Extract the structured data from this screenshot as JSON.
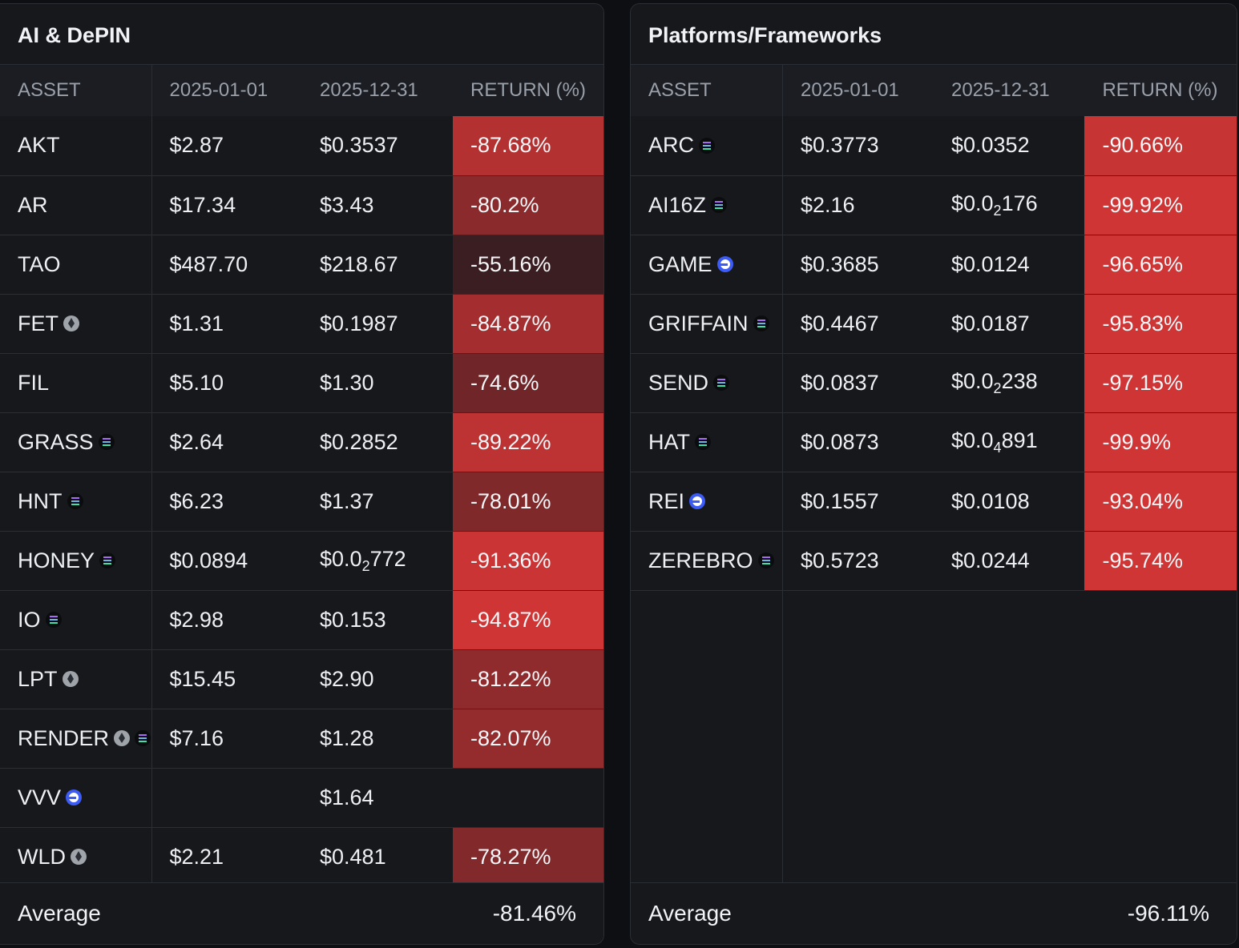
{
  "panels": [
    {
      "title": "AI & DePIN",
      "columns": [
        "ASSET",
        "2025-01-01",
        "2025-12-31",
        "RETURN (%)"
      ],
      "rows": [
        {
          "asset": "AKT",
          "chains": [],
          "start": "$2.87",
          "end": "$0.3537",
          "ret": "-87.68%",
          "ret_value": -87.68
        },
        {
          "asset": "AR",
          "chains": [],
          "start": "$17.34",
          "end": "$3.43",
          "ret": "-80.2%",
          "ret_value": -80.2
        },
        {
          "asset": "TAO",
          "chains": [],
          "start": "$487.70",
          "end": "$218.67",
          "ret": "-55.16%",
          "ret_value": -55.16
        },
        {
          "asset": "FET",
          "chains": [
            "ethereum-icon"
          ],
          "start": "$1.31",
          "end": "$0.1987",
          "ret": "-84.87%",
          "ret_value": -84.87
        },
        {
          "asset": "FIL",
          "chains": [],
          "start": "$5.10",
          "end": "$1.30",
          "ret": "-74.6%",
          "ret_value": -74.6
        },
        {
          "asset": "GRASS",
          "chains": [
            "solana-icon"
          ],
          "start": "$2.64",
          "end": "$0.2852",
          "ret": "-89.22%",
          "ret_value": -89.22
        },
        {
          "asset": "HNT",
          "chains": [
            "solana-icon"
          ],
          "start": "$6.23",
          "end": "$1.37",
          "ret": "-78.01%",
          "ret_value": -78.01
        },
        {
          "asset": "HONEY",
          "chains": [
            "solana-icon"
          ],
          "start": "$0.0894",
          "end": {
            "pre": "$0.0",
            "sub": "2",
            "post": "772"
          },
          "ret": "-91.36%",
          "ret_value": -91.36
        },
        {
          "asset": "IO",
          "chains": [
            "solana-icon"
          ],
          "start": "$2.98",
          "end": "$0.153",
          "ret": "-94.87%",
          "ret_value": -94.87
        },
        {
          "asset": "LPT",
          "chains": [
            "ethereum-icon"
          ],
          "start": "$15.45",
          "end": "$2.90",
          "ret": "-81.22%",
          "ret_value": -81.22
        },
        {
          "asset": "RENDER",
          "chains": [
            "ethereum-icon",
            "solana-icon"
          ],
          "start": "$7.16",
          "end": "$1.28",
          "ret": "-82.07%",
          "ret_value": -82.07
        },
        {
          "asset": "VVV",
          "chains": [
            "base-icon"
          ],
          "start": "",
          "end": "$1.64",
          "ret": "",
          "ret_value": null
        },
        {
          "asset": "WLD",
          "chains": [
            "ethereum-icon"
          ],
          "start": "$2.21",
          "end": "$0.481",
          "ret": "-78.27%",
          "ret_value": -78.27
        }
      ],
      "average_label": "Average",
      "average_value": "-81.46%"
    },
    {
      "title": "Platforms/Frameworks",
      "columns": [
        "ASSET",
        "2025-01-01",
        "2025-12-31",
        "RETURN (%)"
      ],
      "rows": [
        {
          "asset": "ARC",
          "chains": [
            "solana-icon"
          ],
          "start": "$0.3773",
          "end": "$0.0352",
          "ret": "-90.66%",
          "ret_value": -90.66
        },
        {
          "asset": "AI16Z",
          "chains": [
            "solana-icon"
          ],
          "start": "$2.16",
          "end": {
            "pre": "$0.0",
            "sub": "2",
            "post": "176"
          },
          "ret": "-99.92%",
          "ret_value": -99.92
        },
        {
          "asset": "GAME",
          "chains": [
            "base-icon"
          ],
          "start": "$0.3685",
          "end": "$0.0124",
          "ret": "-96.65%",
          "ret_value": -96.65
        },
        {
          "asset": "GRIFFAIN",
          "chains": [
            "solana-icon"
          ],
          "start": "$0.4467",
          "end": "$0.0187",
          "ret": "-95.83%",
          "ret_value": -95.83
        },
        {
          "asset": "SEND",
          "chains": [
            "solana-icon"
          ],
          "start": "$0.0837",
          "end": {
            "pre": "$0.0",
            "sub": "2",
            "post": "238"
          },
          "ret": "-97.15%",
          "ret_value": -97.15
        },
        {
          "asset": "HAT",
          "chains": [
            "solana-icon"
          ],
          "start": "$0.0873",
          "end": {
            "pre": "$0.0",
            "sub": "4",
            "post": "891"
          },
          "ret": "-99.9%",
          "ret_value": -99.9
        },
        {
          "asset": "REI",
          "chains": [
            "base-icon"
          ],
          "start": "$0.1557",
          "end": "$0.0108",
          "ret": "-93.04%",
          "ret_value": -93.04
        },
        {
          "asset": "ZEREBRO",
          "chains": [
            "solana-icon"
          ],
          "start": "$0.5723",
          "end": "$0.0244",
          "ret": "-95.74%",
          "ret_value": -95.74
        }
      ],
      "average_label": "Average",
      "average_value": "-96.11%"
    }
  ],
  "colors": {
    "ret_strong": "#cf3535",
    "ret_weak": "#3a1e22",
    "background": "#16181c"
  }
}
